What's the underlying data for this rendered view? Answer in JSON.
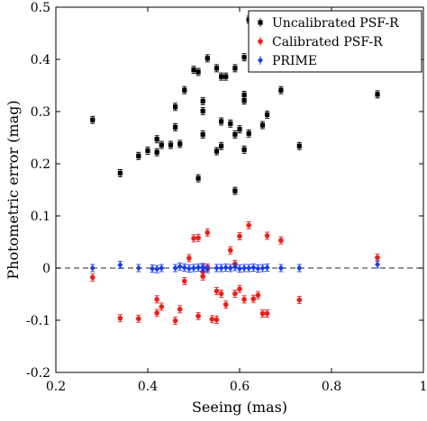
{
  "chart_data": {
    "type": "scatter",
    "xlabel": "Seeing (mas)",
    "ylabel": "Photometric error (mag)",
    "xlim": [
      0.2,
      1.0
    ],
    "ylim": [
      -0.2,
      0.5
    ],
    "xticks": [
      "0.2",
      "0.4",
      "0.6",
      "0.8",
      "1"
    ],
    "yticks": [
      "-0.2",
      "-0.1",
      "0",
      "0.1",
      "0.2",
      "0.3",
      "0.4",
      "0.5"
    ],
    "grid": false,
    "legend_position": "top-right",
    "reference_line": {
      "y": 0,
      "style": "dashed",
      "color": "#555555"
    },
    "series": [
      {
        "name": "Uncalibrated PSF-R",
        "marker": "square",
        "color": "#000000",
        "points": [
          [
            0.28,
            0.284
          ],
          [
            0.34,
            0.182
          ],
          [
            0.38,
            0.215
          ],
          [
            0.4,
            0.225
          ],
          [
            0.42,
            0.222
          ],
          [
            0.42,
            0.247
          ],
          [
            0.43,
            0.236
          ],
          [
            0.45,
            0.236
          ],
          [
            0.46,
            0.27
          ],
          [
            0.46,
            0.309
          ],
          [
            0.47,
            0.238
          ],
          [
            0.48,
            0.341
          ],
          [
            0.5,
            0.38
          ],
          [
            0.51,
            0.376
          ],
          [
            0.51,
            0.172
          ],
          [
            0.52,
            0.32
          ],
          [
            0.52,
            0.301
          ],
          [
            0.52,
            0.256
          ],
          [
            0.53,
            0.402
          ],
          [
            0.55,
            0.224
          ],
          [
            0.55,
            0.383
          ],
          [
            0.56,
            0.367
          ],
          [
            0.56,
            0.281
          ],
          [
            0.56,
            0.234
          ],
          [
            0.57,
            0.367
          ],
          [
            0.58,
            0.277
          ],
          [
            0.59,
            0.256
          ],
          [
            0.59,
            0.383
          ],
          [
            0.59,
            0.148
          ],
          [
            0.6,
            0.266
          ],
          [
            0.61,
            0.404
          ],
          [
            0.61,
            0.332
          ],
          [
            0.61,
            0.227
          ],
          [
            0.61,
            0.321
          ],
          [
            0.62,
            0.476
          ],
          [
            0.62,
            0.258
          ],
          [
            0.64,
            0.458
          ],
          [
            0.65,
            0.274
          ],
          [
            0.66,
            0.294
          ],
          [
            0.69,
            0.341
          ],
          [
            0.73,
            0.234
          ],
          [
            0.9,
            0.333
          ]
        ]
      },
      {
        "name": "Calibrated PSF-R",
        "marker": "circle",
        "color": "#e8201c",
        "points": [
          [
            0.28,
            -0.018
          ],
          [
            0.34,
            -0.096
          ],
          [
            0.38,
            -0.097
          ],
          [
            0.42,
            -0.06
          ],
          [
            0.42,
            -0.086
          ],
          [
            0.43,
            -0.074
          ],
          [
            0.46,
            -0.101
          ],
          [
            0.47,
            -0.079
          ],
          [
            0.48,
            -0.025
          ],
          [
            0.49,
            0.019
          ],
          [
            0.5,
            0.057
          ],
          [
            0.51,
            0.058
          ],
          [
            0.51,
            -0.092
          ],
          [
            0.52,
            -0.007
          ],
          [
            0.52,
            -0.016
          ],
          [
            0.53,
            0.001
          ],
          [
            0.53,
            0.068
          ],
          [
            0.54,
            -0.098
          ],
          [
            0.55,
            -0.099
          ],
          [
            0.55,
            -0.044
          ],
          [
            0.56,
            -0.049
          ],
          [
            0.57,
            -0.07
          ],
          [
            0.58,
            0.034
          ],
          [
            0.59,
            0.008
          ],
          [
            0.59,
            -0.049
          ],
          [
            0.6,
            -0.04
          ],
          [
            0.6,
            0.061
          ],
          [
            0.61,
            -0.06
          ],
          [
            0.62,
            0.082
          ],
          [
            0.63,
            -0.059
          ],
          [
            0.64,
            -0.052
          ],
          [
            0.65,
            -0.087
          ],
          [
            0.66,
            0.062
          ],
          [
            0.66,
            -0.087
          ],
          [
            0.69,
            0.053
          ],
          [
            0.73,
            -0.061
          ],
          [
            0.9,
            0.02
          ]
        ]
      },
      {
        "name": "PRIME",
        "marker": "diamond",
        "color": "#1a3de8",
        "points": [
          [
            0.28,
            0.0
          ],
          [
            0.34,
            0.006
          ],
          [
            0.38,
            0.0
          ],
          [
            0.41,
            -0.001
          ],
          [
            0.42,
            -0.002
          ],
          [
            0.43,
            0.0
          ],
          [
            0.46,
            0.0
          ],
          [
            0.47,
            0.003
          ],
          [
            0.48,
            0.001
          ],
          [
            0.49,
            -0.001
          ],
          [
            0.5,
            0.0
          ],
          [
            0.51,
            0.001
          ],
          [
            0.52,
            0.002
          ],
          [
            0.52,
            0.0
          ],
          [
            0.53,
            -0.002
          ],
          [
            0.55,
            0.0
          ],
          [
            0.56,
            0.0
          ],
          [
            0.57,
            0.001
          ],
          [
            0.58,
            0.0
          ],
          [
            0.59,
            0.002
          ],
          [
            0.6,
            -0.001
          ],
          [
            0.61,
            0.0
          ],
          [
            0.62,
            0.0
          ],
          [
            0.63,
            0.001
          ],
          [
            0.64,
            -0.001
          ],
          [
            0.65,
            0.0
          ],
          [
            0.66,
            0.001
          ],
          [
            0.69,
            0.0
          ],
          [
            0.73,
            0.0
          ],
          [
            0.9,
            0.007
          ]
        ]
      }
    ]
  }
}
